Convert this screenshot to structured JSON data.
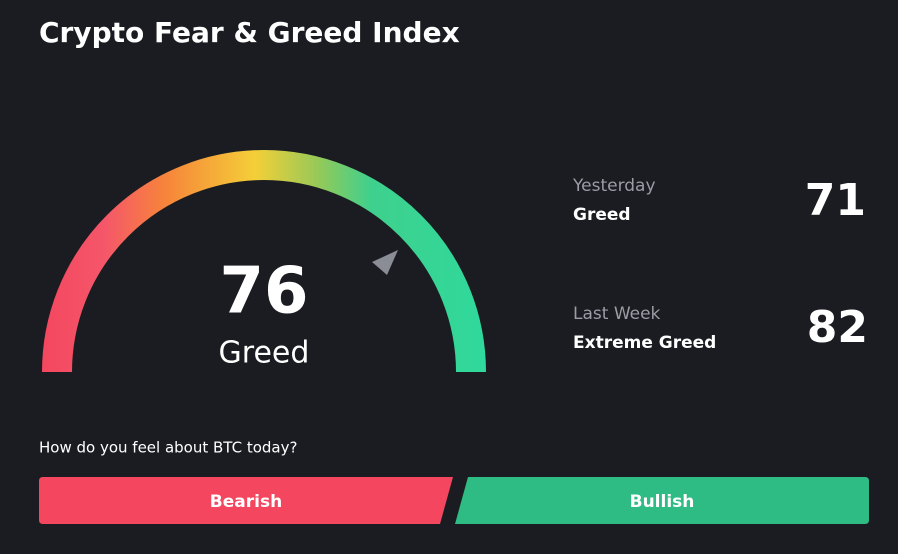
{
  "header": {
    "title": "Crypto Fear & Greed Index"
  },
  "gauge": {
    "value": 76,
    "label": "Greed"
  },
  "history": [
    {
      "period": "Yesterday",
      "label": "Greed",
      "value": 71
    },
    {
      "period": "Last Week",
      "label": "Extreme Greed",
      "value": 82
    }
  ],
  "poll": {
    "question": "How do you feel about BTC today?",
    "options": [
      "Bearish",
      "Bullish"
    ]
  }
}
